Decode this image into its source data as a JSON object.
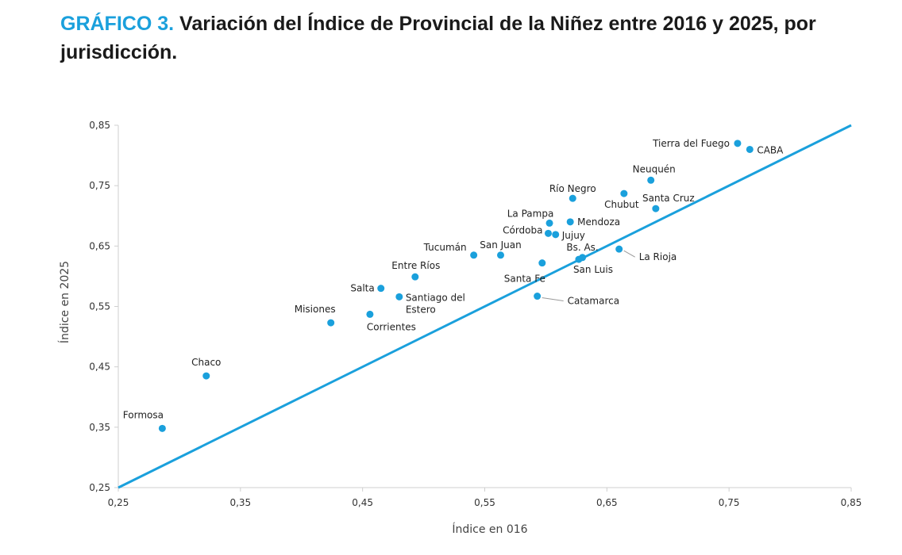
{
  "header": {
    "prefix": "GRÁFICO 3.",
    "title": "Variación del Índice de Provincial de la Niñez entre 2016 y 2025, por jurisdicción."
  },
  "chart_data": {
    "type": "scatter",
    "xlabel": "Índice en 016",
    "ylabel": "Índice en 2025",
    "xlim": [
      0.25,
      0.85
    ],
    "ylim": [
      0.25,
      0.85
    ],
    "xticks": [
      "0,25",
      "0,35",
      "0,45",
      "0,55",
      "0,65",
      "0,75",
      "0,85"
    ],
    "yticks": [
      "0,25",
      "0,35",
      "0,45",
      "0,55",
      "0,65",
      "0,75",
      "0,85"
    ],
    "reference_line": {
      "type": "identity",
      "from": [
        0.25,
        0.25
      ],
      "to": [
        0.85,
        0.85
      ]
    },
    "grid": false,
    "point_color": "#1aa0dc",
    "points": [
      {
        "name": "Formosa",
        "x": 0.286,
        "y": 0.348
      },
      {
        "name": "Chaco",
        "x": 0.322,
        "y": 0.435
      },
      {
        "name": "Misiones",
        "x": 0.424,
        "y": 0.523
      },
      {
        "name": "Corrientes",
        "x": 0.456,
        "y": 0.537
      },
      {
        "name": "Salta",
        "x": 0.465,
        "y": 0.58
      },
      {
        "name": "Santiago del Estero",
        "x": 0.48,
        "y": 0.566
      },
      {
        "name": "Entre Ríos",
        "x": 0.493,
        "y": 0.599
      },
      {
        "name": "Tucumán",
        "x": 0.541,
        "y": 0.635
      },
      {
        "name": "San Juan",
        "x": 0.563,
        "y": 0.635
      },
      {
        "name": "Catamarca",
        "x": 0.593,
        "y": 0.567
      },
      {
        "name": "Santa Fe",
        "x": 0.597,
        "y": 0.622
      },
      {
        "name": "La Pampa",
        "x": 0.603,
        "y": 0.688
      },
      {
        "name": "Córdoba",
        "x": 0.602,
        "y": 0.671
      },
      {
        "name": "Jujuy",
        "x": 0.608,
        "y": 0.669
      },
      {
        "name": "Mendoza",
        "x": 0.62,
        "y": 0.69
      },
      {
        "name": "Río Negro",
        "x": 0.622,
        "y": 0.729
      },
      {
        "name": "Bs. As.",
        "x": 0.63,
        "y": 0.631
      },
      {
        "name": "San Luis",
        "x": 0.627,
        "y": 0.628
      },
      {
        "name": "La Rioja",
        "x": 0.66,
        "y": 0.645
      },
      {
        "name": "Chubut",
        "x": 0.664,
        "y": 0.737
      },
      {
        "name": "Neuquén",
        "x": 0.686,
        "y": 0.759
      },
      {
        "name": "Santa Cruz",
        "x": 0.69,
        "y": 0.712
      },
      {
        "name": "Tierra del Fuego",
        "x": 0.757,
        "y": 0.82
      },
      {
        "name": "CABA",
        "x": 0.767,
        "y": 0.81
      }
    ]
  }
}
